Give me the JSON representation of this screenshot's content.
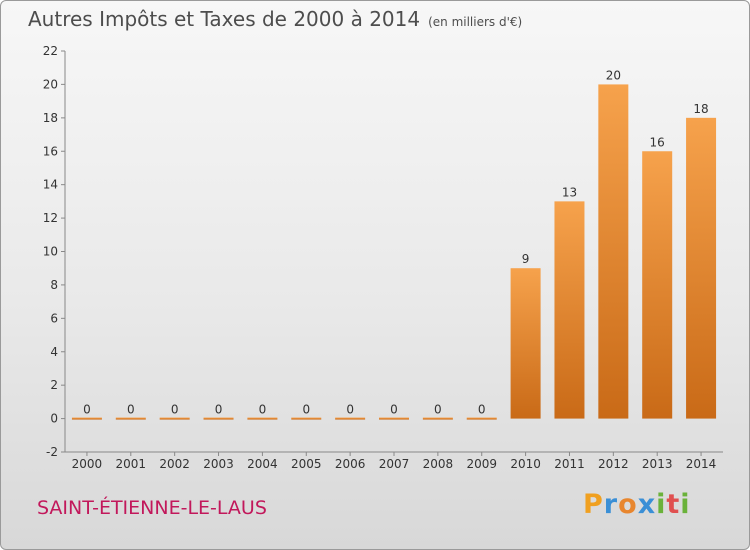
{
  "chart_data": {
    "type": "bar",
    "title": "Autres Impôts et Taxes de 2000 à 2014",
    "subtitle": "(en milliers d'€)",
    "categories": [
      "2000",
      "2001",
      "2002",
      "2003",
      "2004",
      "2005",
      "2006",
      "2007",
      "2008",
      "2009",
      "2010",
      "2011",
      "2012",
      "2013",
      "2014"
    ],
    "values": [
      0,
      0,
      0,
      0,
      0,
      0,
      0,
      0,
      0,
      0,
      9,
      13,
      20,
      16,
      18
    ],
    "data_labels": [
      "0",
      "0",
      "0",
      "0",
      "0",
      "0",
      "0",
      "0",
      "0",
      "0",
      "9",
      "13",
      "20",
      "16",
      "18"
    ],
    "ylim": [
      -2,
      22
    ],
    "yticks": [
      -2,
      0,
      2,
      4,
      6,
      8,
      10,
      12,
      14,
      16,
      18,
      20,
      22
    ],
    "grid": false,
    "bar_color": "#e8862e"
  },
  "commune": "SAINT-ÉTIENNE-LE-LAUS",
  "logo": {
    "letters": [
      "P",
      "r",
      "o",
      "x",
      "i",
      "t",
      "i"
    ],
    "colors": [
      "#f0a020",
      "#3a8fd6",
      "#e8862e",
      "#3a8fd6",
      "#6ab23a",
      "#e05050",
      "#6ab23a"
    ]
  }
}
